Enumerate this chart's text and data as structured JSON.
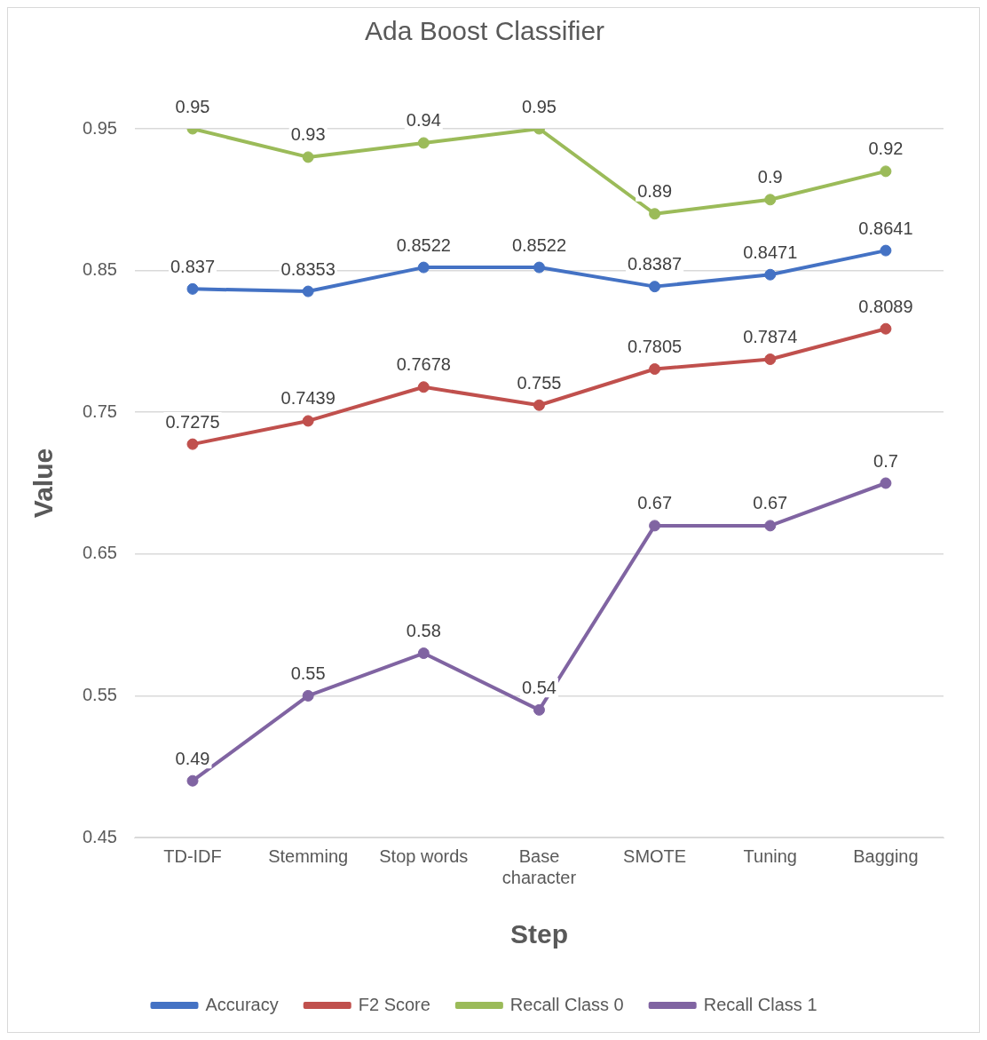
{
  "chart_data": {
    "type": "line",
    "title": "Ada Boost Classifier",
    "xlabel": "Step",
    "ylabel": "Value",
    "categories": [
      "TD-IDF",
      "Stemming",
      "Stop words",
      "Base character",
      "SMOTE",
      "Tuning",
      "Bagging"
    ],
    "series": [
      {
        "name": "Accuracy",
        "color": "#4472c4",
        "values": [
          0.837,
          0.8353,
          0.8522,
          0.8522,
          0.8387,
          0.8471,
          0.8641
        ]
      },
      {
        "name": "F2 Score",
        "color": "#c0504d",
        "values": [
          0.7275,
          0.7439,
          0.7678,
          0.755,
          0.7805,
          0.7874,
          0.8089
        ]
      },
      {
        "name": "Recall Class 0",
        "color": "#9bbb59",
        "values": [
          0.95,
          0.93,
          0.94,
          0.95,
          0.89,
          0.9,
          0.92
        ]
      },
      {
        "name": "Recall Class 1",
        "color": "#8064a2",
        "values": [
          0.49,
          0.55,
          0.58,
          0.54,
          0.67,
          0.67,
          0.7
        ]
      }
    ],
    "ylim": [
      0.45,
      0.95
    ],
    "yticks": [
      0.45,
      0.55,
      0.65,
      0.75,
      0.85,
      0.95
    ],
    "grid": "y",
    "legend": "bottom",
    "marker": "circle",
    "line_style": "solid",
    "data_labels": true
  }
}
